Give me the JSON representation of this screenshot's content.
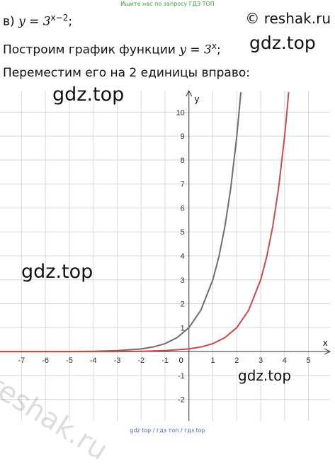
{
  "top_note": "Ищите нас по запросу ГДЗ ТОП",
  "line1": {
    "prefix": "в)",
    "expr": "y = 3",
    "exponent": "x−2",
    "suffix": ";"
  },
  "copyright": "© reshak.ru",
  "line2": {
    "text": "Построим график функции",
    "expr": "y = 3",
    "exponent": "x",
    "suffix": ";"
  },
  "line3": "Переместим его на 2 единицы вправо:",
  "watermarks": [
    "gdz.top",
    "gdz.top",
    "gdz.top",
    "gdz.top",
    "reshak.ru"
  ],
  "bottom_note": "gdz top / гдз топ / гдз top",
  "chart_data": {
    "type": "line",
    "xlabel": "x",
    "ylabel": "y",
    "origin_label": "0",
    "xlim": [
      -7.9,
      5.9
    ],
    "ylim": [
      -2.9,
      10.9
    ],
    "xticks": [
      -7,
      -6,
      -5,
      -4,
      -3,
      -2,
      -1,
      1,
      2,
      3,
      4,
      5
    ],
    "yticks": [
      -2,
      -1,
      1,
      2,
      3,
      4,
      5,
      6,
      7,
      8,
      9,
      10
    ],
    "grid": true,
    "series": [
      {
        "color": "#6d6d6d",
        "x": [
          -7.9,
          -7,
          -6,
          -5,
          -4,
          -3,
          -2,
          -1.5,
          -1,
          -0.5,
          0,
          0.5,
          1,
          1.25,
          1.5,
          1.75,
          2,
          2.1,
          2.17
        ],
        "values": [
          0,
          0,
          0,
          0,
          0.01,
          0.04,
          0.11,
          0.19,
          0.33,
          0.58,
          1,
          1.73,
          3,
          3.95,
          5.2,
          6.84,
          9,
          10.05,
          10.84
        ]
      },
      {
        "color": "#c94a4a",
        "x": [
          -7.9,
          -5,
          -4,
          -3,
          -2,
          -1,
          0,
          0.5,
          1,
          1.5,
          2,
          2.5,
          3,
          3.25,
          3.5,
          3.75,
          4,
          4.1,
          4.17
        ],
        "values": [
          0,
          0,
          0,
          0,
          0.01,
          0.04,
          0.11,
          0.19,
          0.33,
          0.58,
          1,
          1.73,
          3,
          3.95,
          5.2,
          6.84,
          9,
          10.05,
          10.84
        ]
      }
    ]
  }
}
